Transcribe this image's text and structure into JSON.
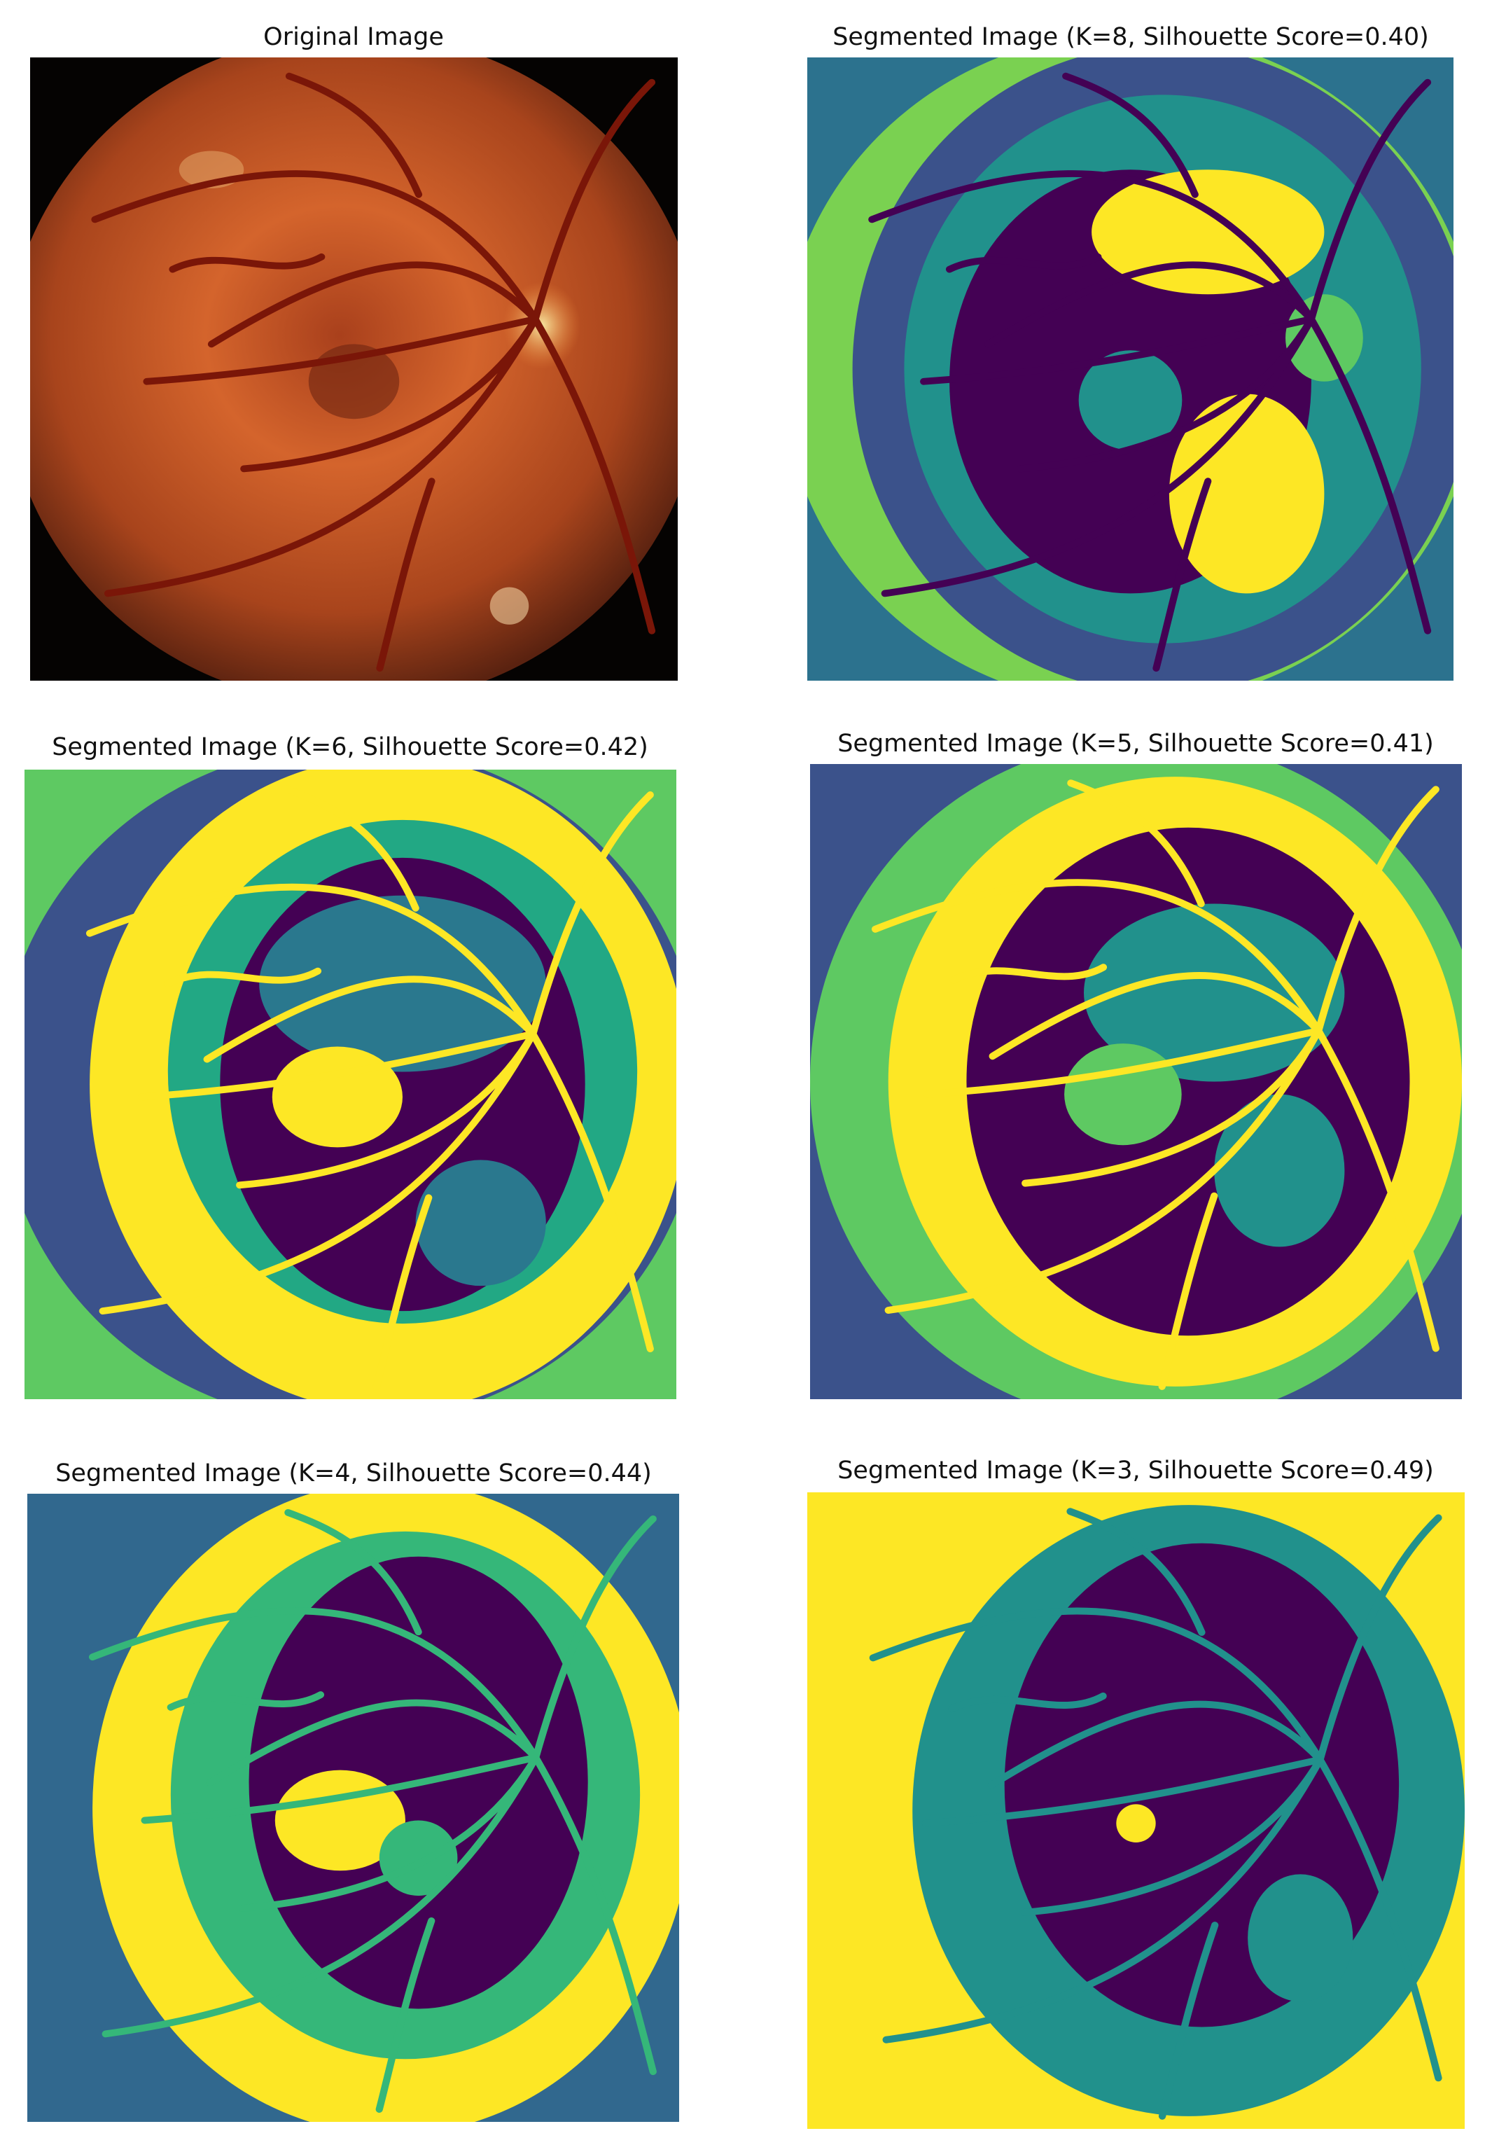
{
  "panels": [
    {
      "title": "Original Image"
    },
    {
      "title": "Segmented Image (K=8, Silhouette Score=0.40)"
    },
    {
      "title": "Segmented Image (K=6, Silhouette Score=0.42)"
    },
    {
      "title": "Segmented Image (K=5, Silhouette Score=0.41)"
    },
    {
      "title": "Segmented Image (K=4, Silhouette Score=0.44)"
    },
    {
      "title": "Segmented Image (K=3, Silhouette Score=0.49)"
    }
  ]
}
